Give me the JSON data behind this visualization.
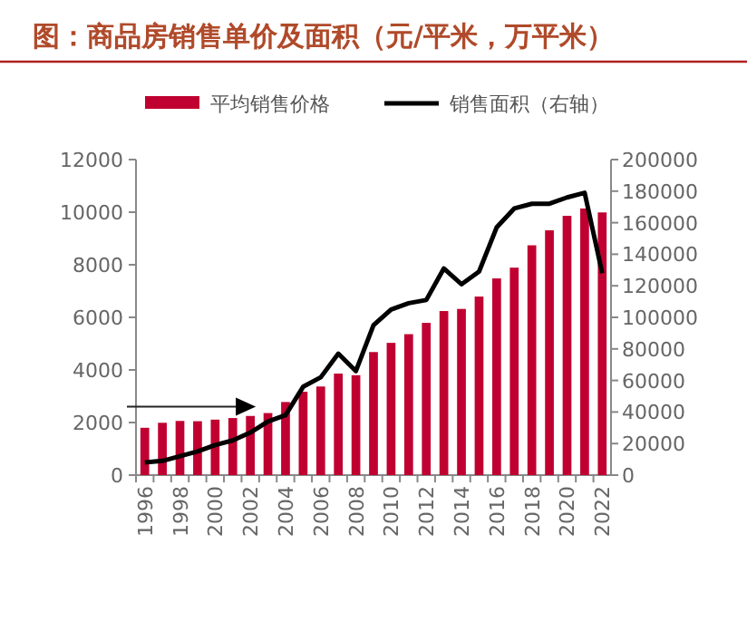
{
  "chart_data": {
    "type": "bar",
    "title": "图：商品房销售单价及面积（元/平米，万平米）",
    "categories": [
      "1996",
      null,
      "1998",
      null,
      "2000",
      null,
      "2002",
      null,
      "2004",
      null,
      "2006",
      null,
      "2008",
      null,
      "2010",
      null,
      "2012",
      null,
      "2014",
      null,
      "2016",
      null,
      "2018",
      null,
      "2020",
      null,
      "2022"
    ],
    "series": [
      {
        "name": "平均销售价格",
        "color": "#c00030",
        "values": [
          1800,
          1990,
          2060,
          2050,
          2110,
          2170,
          2250,
          2360,
          2780,
          3170,
          3370,
          3860,
          3800,
          4680,
          5030,
          5360,
          5790,
          6240,
          6320,
          6790,
          7480,
          7890,
          8740,
          9310,
          9860,
          10140,
          9990
        ]
      },
      {
        "name": "销售面积（右轴）",
        "type": "line",
        "axis": "y2",
        "color": "#000000",
        "values": [
          8000,
          9000,
          12000,
          15000,
          19000,
          22000,
          27000,
          34000,
          38000,
          56000,
          62000,
          77000,
          66000,
          95000,
          105000,
          109000,
          111000,
          131000,
          121000,
          129000,
          157000,
          169000,
          172000,
          172000,
          176000,
          179000,
          128000
        ]
      }
    ],
    "ylim": [
      0,
      12000
    ],
    "yticks": [
      0,
      2000,
      4000,
      6000,
      8000,
      10000,
      12000
    ],
    "y2lim": [
      0,
      200000
    ],
    "y2ticks": [
      0,
      20000,
      40000,
      60000,
      80000,
      100000,
      120000,
      140000,
      160000,
      180000,
      200000
    ],
    "legend": "top"
  }
}
